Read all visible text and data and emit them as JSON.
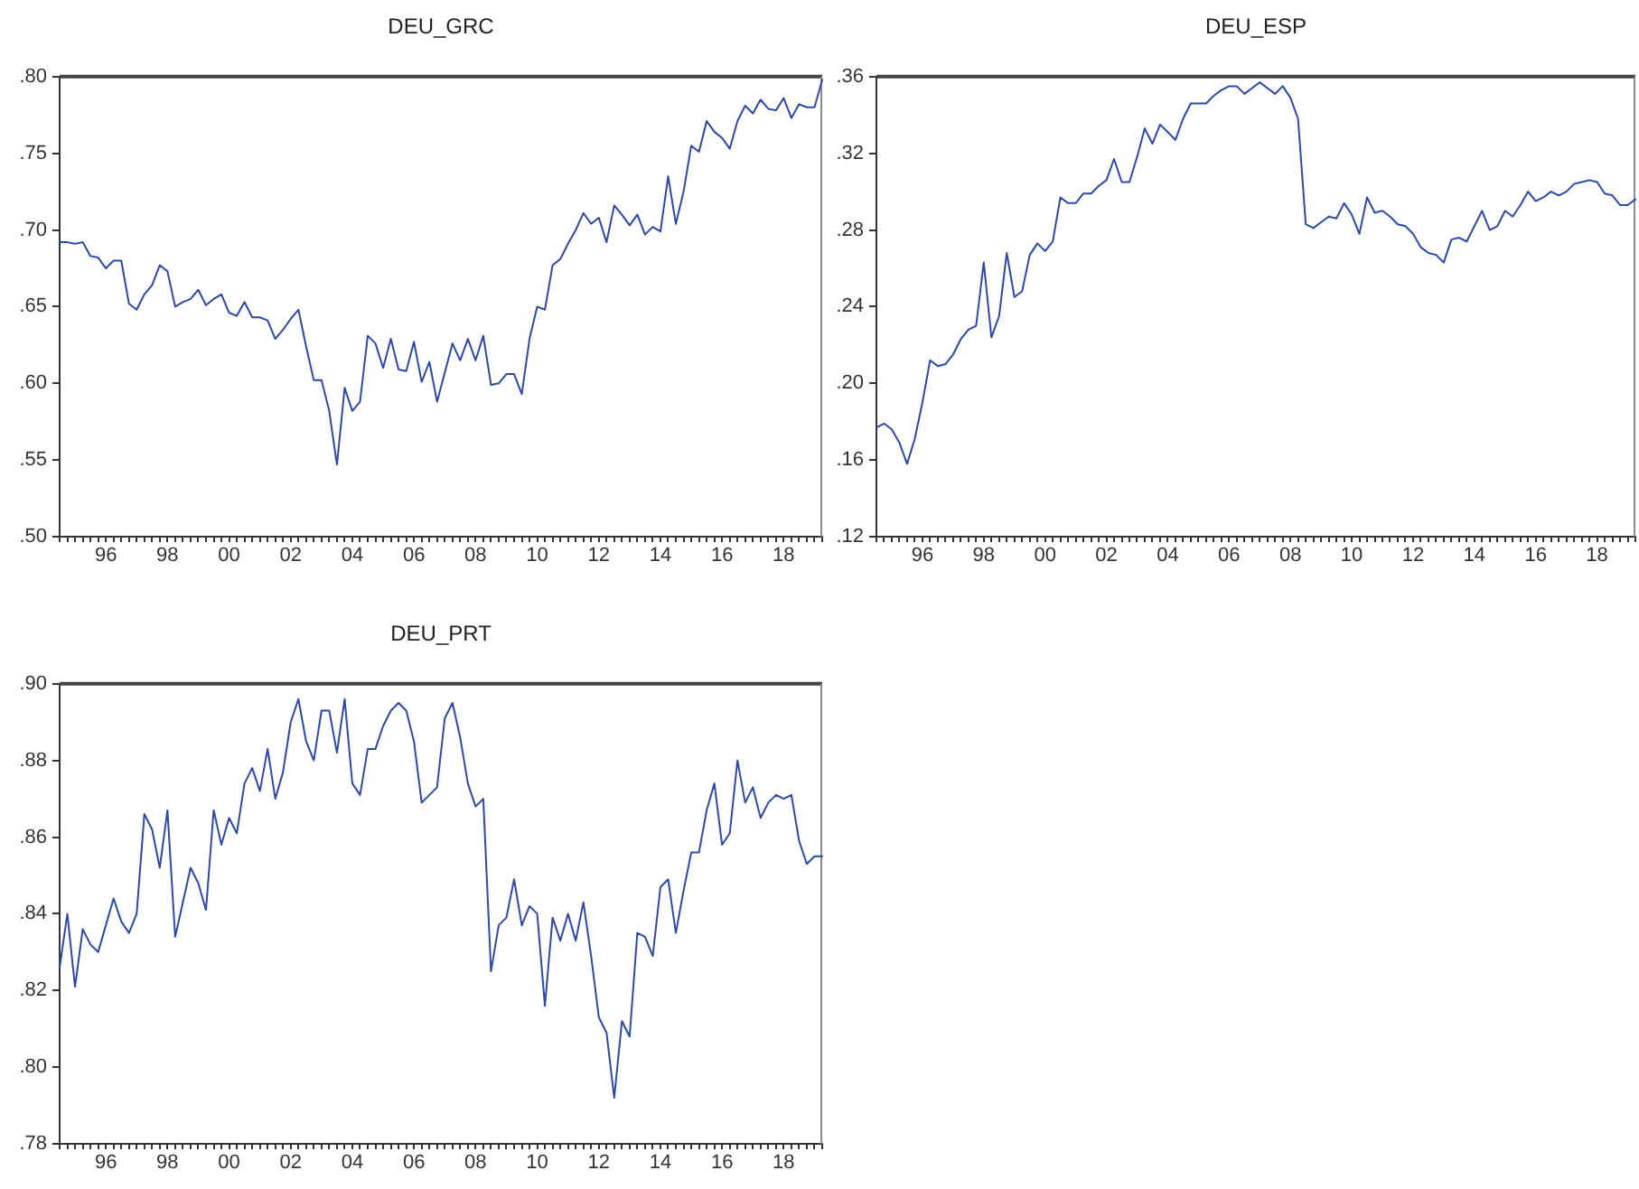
{
  "chart_data": [
    {
      "type": "line",
      "title": "DEU_GRC",
      "color": "#2c48a8",
      "categories": [
        null,
        null,
        null,
        null,
        null,
        null,
        "96",
        null,
        null,
        null,
        null,
        null,
        null,
        null,
        "98",
        null,
        null,
        null,
        null,
        null,
        null,
        null,
        "00",
        null,
        null,
        null,
        null,
        null,
        null,
        null,
        "02",
        null,
        null,
        null,
        null,
        null,
        null,
        null,
        "04",
        null,
        null,
        null,
        null,
        null,
        null,
        null,
        "06",
        null,
        null,
        null,
        null,
        null,
        null,
        null,
        "08",
        null,
        null,
        null,
        null,
        null,
        null,
        null,
        "10",
        null,
        null,
        null,
        null,
        null,
        null,
        null,
        "12",
        null,
        null,
        null,
        null,
        null,
        null,
        null,
        "14",
        null,
        null,
        null,
        null,
        null,
        null,
        null,
        "16",
        null,
        null,
        null,
        null,
        null,
        null,
        null,
        "18",
        null,
        null,
        null,
        null,
        null
      ],
      "values": [
        0.692,
        0.692,
        0.691,
        0.692,
        0.683,
        0.682,
        0.675,
        0.68,
        0.68,
        0.652,
        0.648,
        0.658,
        0.664,
        0.677,
        0.673,
        0.65,
        0.653,
        0.655,
        0.661,
        0.651,
        0.655,
        0.658,
        0.646,
        0.644,
        0.653,
        0.643,
        0.643,
        0.641,
        0.629,
        0.635,
        0.642,
        0.648,
        0.624,
        0.602,
        0.602,
        0.582,
        0.547,
        0.597,
        0.582,
        0.588,
        0.631,
        0.626,
        0.61,
        0.629,
        0.609,
        0.608,
        0.627,
        0.601,
        0.614,
        0.588,
        0.607,
        0.626,
        0.615,
        0.629,
        0.615,
        0.631,
        0.599,
        0.6,
        0.606,
        0.606,
        0.593,
        0.629,
        0.65,
        0.648,
        0.677,
        0.681,
        0.691,
        0.7,
        0.711,
        0.704,
        0.708,
        0.692,
        0.716,
        0.71,
        0.703,
        0.71,
        0.697,
        0.702,
        0.699,
        0.735,
        0.704,
        0.725,
        0.755,
        0.751,
        0.771,
        0.764,
        0.76,
        0.753,
        0.771,
        0.781,
        0.776,
        0.785,
        0.779,
        0.778,
        0.786,
        0.773,
        0.782,
        0.78,
        0.78,
        0.798
      ],
      "ylim": [
        0.5,
        0.8
      ],
      "yticks": [
        {
          "value": 0.5,
          "label": ".50"
        },
        {
          "value": 0.55,
          "label": ".55"
        },
        {
          "value": 0.6,
          "label": ".60"
        },
        {
          "value": 0.65,
          "label": ".65"
        },
        {
          "value": 0.7,
          "label": ".70"
        },
        {
          "value": 0.75,
          "label": ".75"
        },
        {
          "value": 0.8,
          "label": ".80"
        }
      ]
    },
    {
      "type": "line",
      "title": "DEU_ESP",
      "color": "#2c48a8",
      "categories": [
        null,
        null,
        null,
        null,
        null,
        null,
        "96",
        null,
        null,
        null,
        null,
        null,
        null,
        null,
        "98",
        null,
        null,
        null,
        null,
        null,
        null,
        null,
        "00",
        null,
        null,
        null,
        null,
        null,
        null,
        null,
        "02",
        null,
        null,
        null,
        null,
        null,
        null,
        null,
        "04",
        null,
        null,
        null,
        null,
        null,
        null,
        null,
        "06",
        null,
        null,
        null,
        null,
        null,
        null,
        null,
        "08",
        null,
        null,
        null,
        null,
        null,
        null,
        null,
        "10",
        null,
        null,
        null,
        null,
        null,
        null,
        null,
        "12",
        null,
        null,
        null,
        null,
        null,
        null,
        null,
        "14",
        null,
        null,
        null,
        null,
        null,
        null,
        null,
        "16",
        null,
        null,
        null,
        null,
        null,
        null,
        null,
        "18",
        null,
        null,
        null,
        null,
        null
      ],
      "values": [
        0.177,
        0.179,
        0.176,
        0.169,
        0.158,
        0.171,
        0.19,
        0.212,
        0.209,
        0.21,
        0.215,
        0.223,
        0.228,
        0.23,
        0.263,
        0.224,
        0.235,
        0.268,
        0.245,
        0.248,
        0.267,
        0.273,
        0.269,
        0.274,
        0.297,
        0.294,
        0.294,
        0.299,
        0.299,
        0.303,
        0.306,
        0.317,
        0.305,
        0.305,
        0.318,
        0.333,
        0.325,
        0.335,
        0.331,
        0.327,
        0.338,
        0.346,
        0.346,
        0.346,
        0.35,
        0.353,
        0.355,
        0.355,
        0.351,
        0.354,
        0.357,
        0.354,
        0.351,
        0.355,
        0.349,
        0.338,
        0.283,
        0.281,
        0.284,
        0.287,
        0.286,
        0.294,
        0.288,
        0.278,
        0.297,
        0.289,
        0.29,
        0.287,
        0.283,
        0.282,
        0.278,
        0.271,
        0.268,
        0.267,
        0.263,
        0.275,
        0.276,
        0.274,
        0.282,
        0.29,
        0.28,
        0.282,
        0.29,
        0.287,
        0.293,
        0.3,
        0.295,
        0.297,
        0.3,
        0.298,
        0.3,
        0.304,
        0.305,
        0.306,
        0.305,
        0.299,
        0.298,
        0.293,
        0.293,
        0.296
      ],
      "ylim": [
        0.12,
        0.36
      ],
      "yticks": [
        {
          "value": 0.12,
          "label": ".12"
        },
        {
          "value": 0.16,
          "label": ".16"
        },
        {
          "value": 0.2,
          "label": ".20"
        },
        {
          "value": 0.24,
          "label": ".24"
        },
        {
          "value": 0.28,
          "label": ".28"
        },
        {
          "value": 0.32,
          "label": ".32"
        },
        {
          "value": 0.36,
          "label": ".36"
        }
      ]
    },
    {
      "type": "line",
      "title": "DEU_PRT",
      "color": "#2c48a8",
      "categories": [
        null,
        null,
        null,
        null,
        null,
        null,
        "96",
        null,
        null,
        null,
        null,
        null,
        null,
        null,
        "98",
        null,
        null,
        null,
        null,
        null,
        null,
        null,
        "00",
        null,
        null,
        null,
        null,
        null,
        null,
        null,
        "02",
        null,
        null,
        null,
        null,
        null,
        null,
        null,
        "04",
        null,
        null,
        null,
        null,
        null,
        null,
        null,
        "06",
        null,
        null,
        null,
        null,
        null,
        null,
        null,
        "08",
        null,
        null,
        null,
        null,
        null,
        null,
        null,
        "10",
        null,
        null,
        null,
        null,
        null,
        null,
        null,
        "12",
        null,
        null,
        null,
        null,
        null,
        null,
        null,
        "14",
        null,
        null,
        null,
        null,
        null,
        null,
        null,
        "16",
        null,
        null,
        null,
        null,
        null,
        null,
        null,
        "18",
        null,
        null,
        null,
        null,
        null
      ],
      "values": [
        0.826,
        0.84,
        0.821,
        0.836,
        0.832,
        0.83,
        0.837,
        0.844,
        0.838,
        0.835,
        0.84,
        0.866,
        0.862,
        0.852,
        0.867,
        0.834,
        0.843,
        0.852,
        0.848,
        0.841,
        0.867,
        0.858,
        0.865,
        0.861,
        0.874,
        0.878,
        0.872,
        0.883,
        0.87,
        0.877,
        0.89,
        0.896,
        0.885,
        0.88,
        0.893,
        0.893,
        0.882,
        0.896,
        0.874,
        0.871,
        0.883,
        0.883,
        0.889,
        0.893,
        0.895,
        0.893,
        0.885,
        0.869,
        0.871,
        0.873,
        0.891,
        0.895,
        0.886,
        0.874,
        0.868,
        0.87,
        0.825,
        0.837,
        0.839,
        0.849,
        0.837,
        0.842,
        0.84,
        0.816,
        0.839,
        0.833,
        0.84,
        0.833,
        0.843,
        0.829,
        0.813,
        0.809,
        0.792,
        0.812,
        0.808,
        0.835,
        0.834,
        0.829,
        0.847,
        0.849,
        0.835,
        0.846,
        0.856,
        0.856,
        0.867,
        0.874,
        0.858,
        0.861,
        0.88,
        0.869,
        0.873,
        0.865,
        0.869,
        0.871,
        0.87,
        0.871,
        0.859,
        0.853,
        0.855,
        0.855
      ],
      "ylim": [
        0.78,
        0.9
      ],
      "yticks": [
        {
          "value": 0.78,
          "label": ".78"
        },
        {
          "value": 0.8,
          "label": ".80"
        },
        {
          "value": 0.82,
          "label": ".82"
        },
        {
          "value": 0.84,
          "label": ".84"
        },
        {
          "value": 0.86,
          "label": ".86"
        },
        {
          "value": 0.88,
          "label": ".88"
        },
        {
          "value": 0.9,
          "label": ".90"
        }
      ]
    }
  ]
}
